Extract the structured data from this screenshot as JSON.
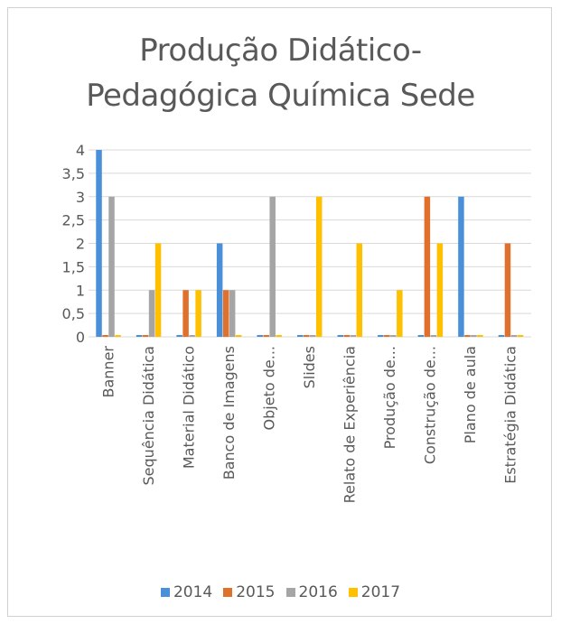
{
  "chart_data": {
    "type": "bar",
    "title_line1": "Produção Didático-",
    "title_line2": "Pedagógica Química Sede",
    "categories": [
      "Banner",
      "Sequência Didática",
      "Material Didático",
      "Banco de Imagens",
      "Objeto de...",
      "Slides",
      "Relato de Experiência",
      "Produção de...",
      "Construção de...",
      "Plano de aula",
      "Estratégia Didática"
    ],
    "series": [
      {
        "name": "2014",
        "color": "#4a90d9",
        "values": [
          4,
          0,
          0,
          2,
          0,
          0,
          0,
          0,
          0,
          3,
          0
        ]
      },
      {
        "name": "2015",
        "color": "#e0712c",
        "values": [
          0,
          0,
          1,
          1,
          0,
          0,
          0,
          0,
          3,
          0,
          2
        ]
      },
      {
        "name": "2016",
        "color": "#a5a5a5",
        "values": [
          3,
          1,
          0,
          1,
          3,
          0,
          0,
          0,
          0,
          0,
          0
        ]
      },
      {
        "name": "2017",
        "color": "#ffc000",
        "values": [
          0,
          2,
          1,
          0,
          0,
          3,
          2,
          1,
          2,
          0,
          0
        ]
      }
    ],
    "y_ticks": [
      "0",
      "0,5",
      "1",
      "1,5",
      "2",
      "2,5",
      "3",
      "3,5",
      "4"
    ],
    "ylim": [
      0,
      4
    ],
    "legend_position": "bottom"
  }
}
